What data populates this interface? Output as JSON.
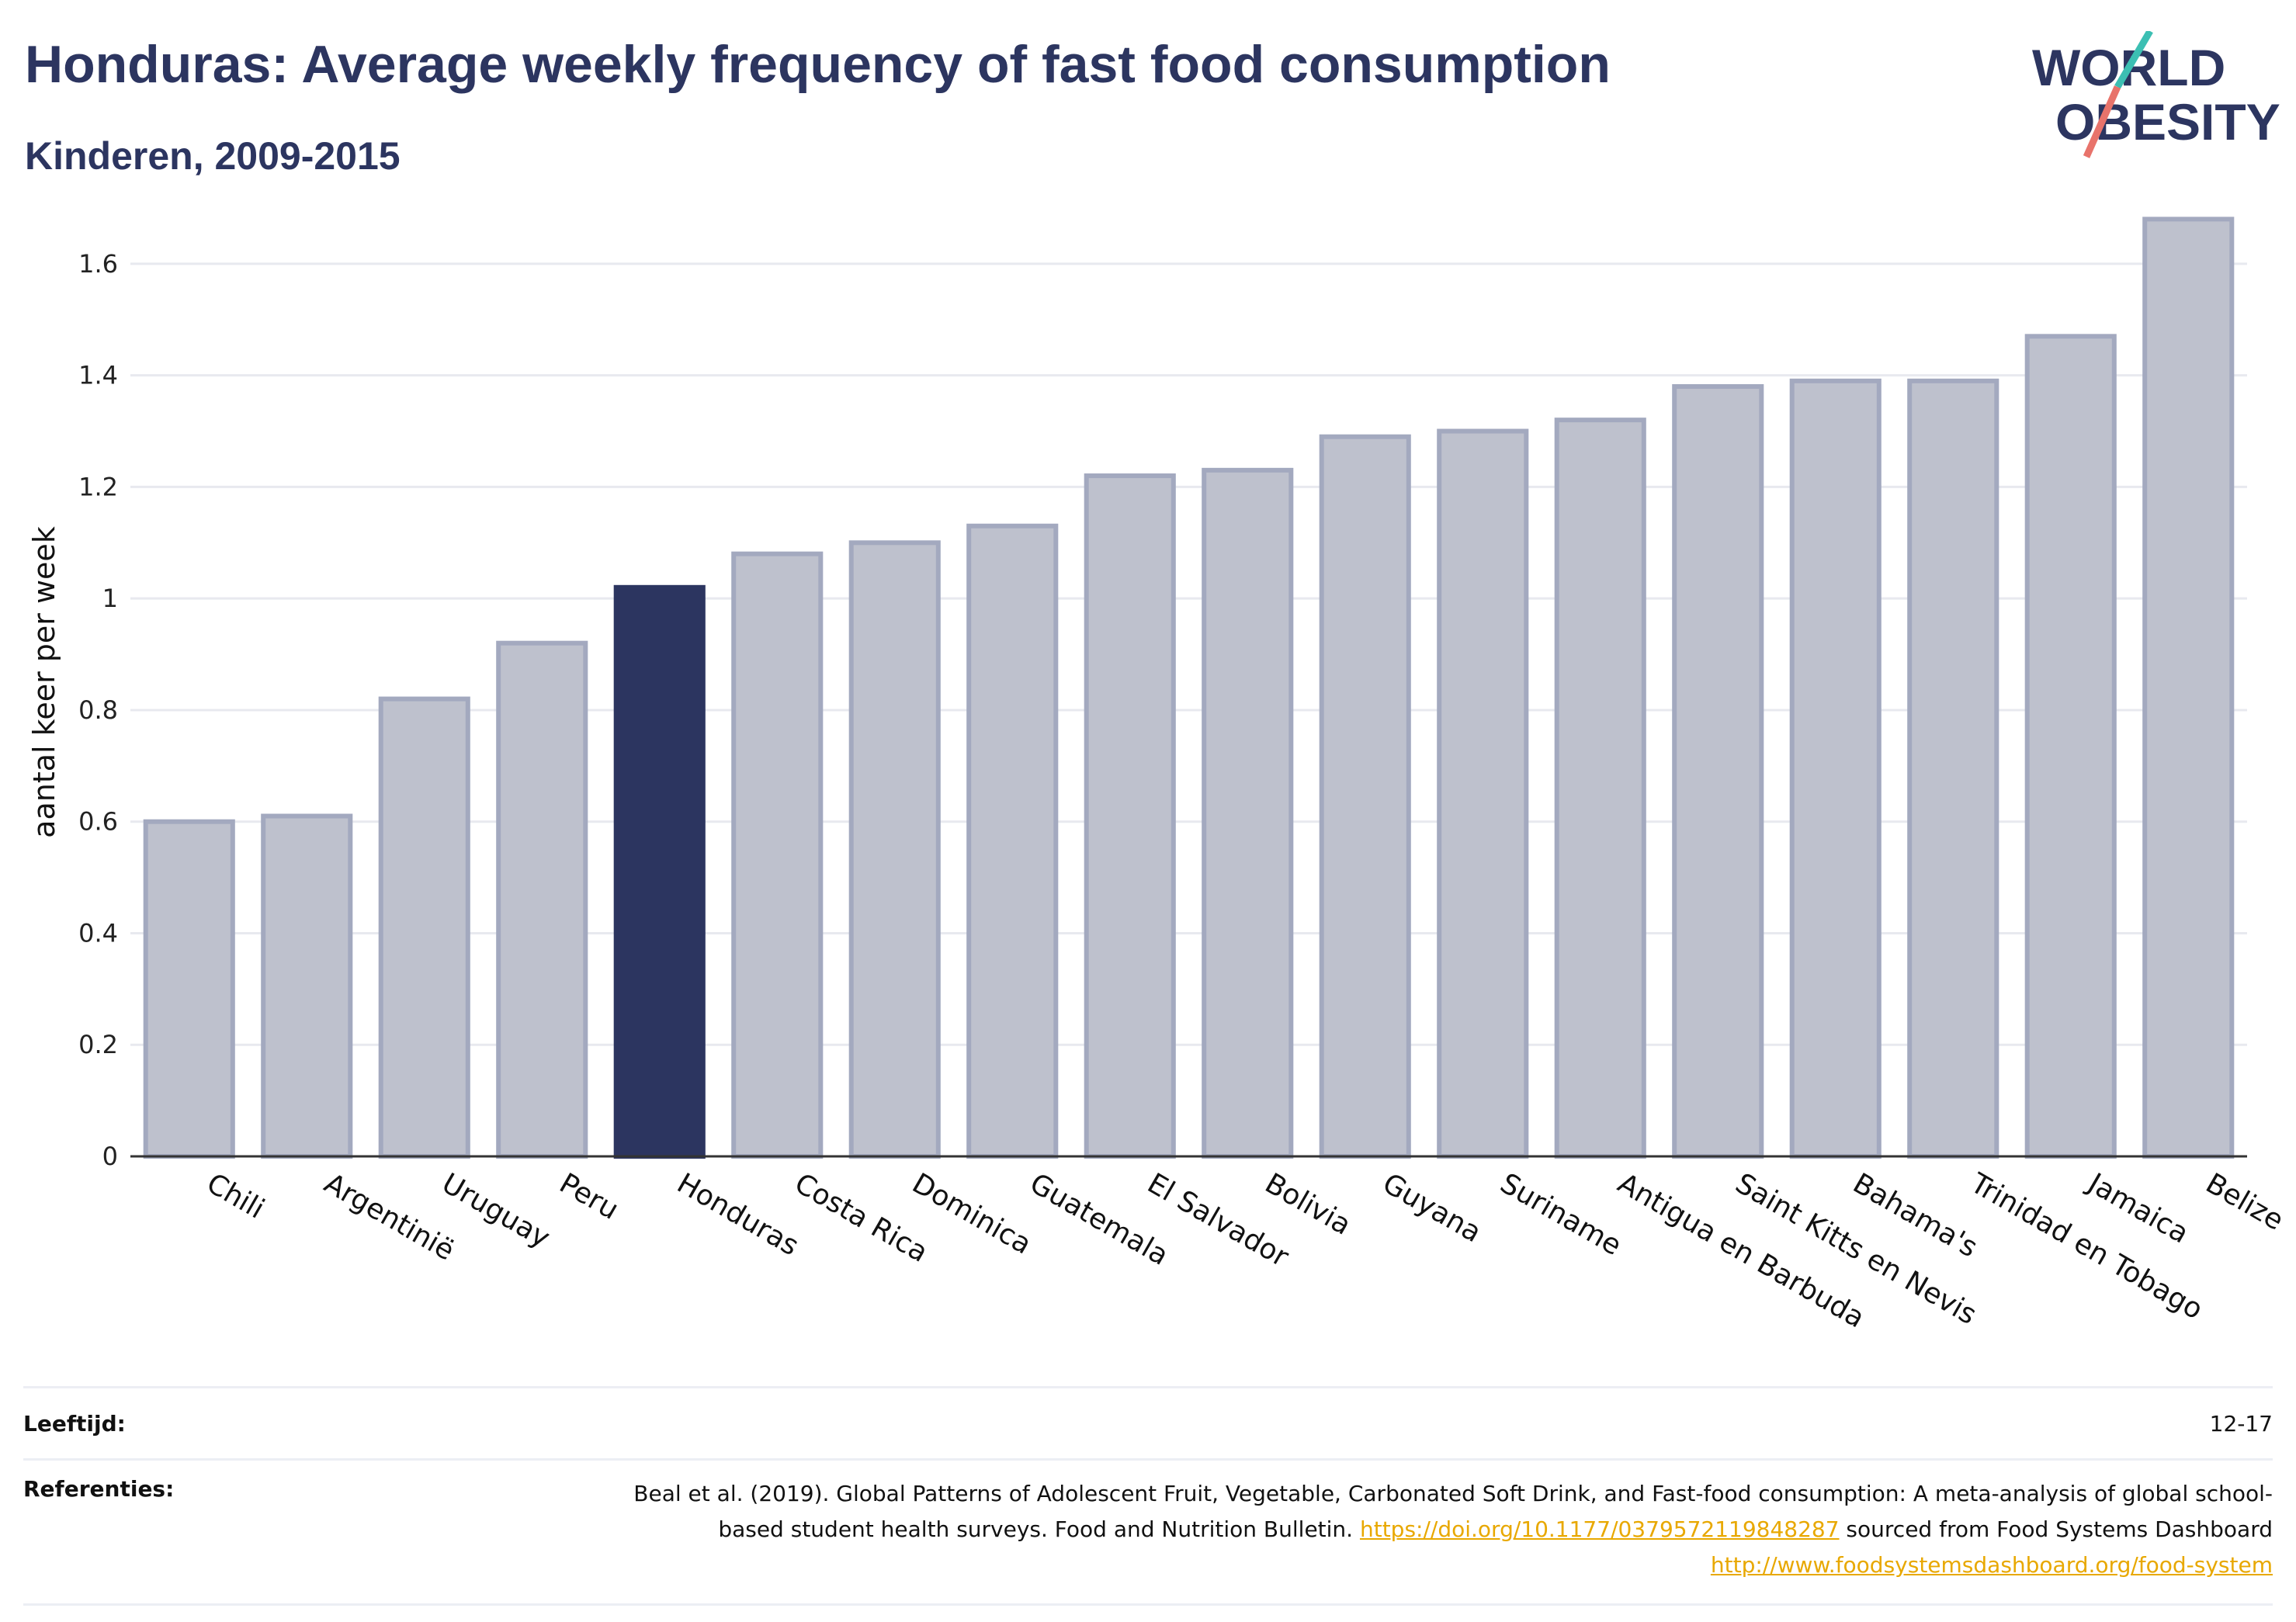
{
  "header": {
    "title": "Honduras: Average weekly frequency of fast food consumption",
    "subtitle": "Kinderen, 2009-2015"
  },
  "logo": {
    "line1": "WORLD",
    "line2": "OBESITY"
  },
  "chart_data": {
    "type": "bar",
    "ylabel": "aantal keer per week",
    "xlabel": "",
    "ylim": [
      0,
      1.7
    ],
    "yticks": [
      0,
      0.2,
      0.4,
      0.6,
      0.8,
      1,
      1.2,
      1.4,
      1.6
    ],
    "ytick_labels": [
      "0",
      "0.2",
      "0.4",
      "0.6",
      "0.8",
      "1",
      "1.2",
      "1.4",
      "1.6"
    ],
    "grid": true,
    "highlight": "Honduras",
    "categories": [
      "Chili",
      "Argentinië",
      "Uruguay",
      "Peru",
      "Honduras",
      "Costa Rica",
      "Dominica",
      "Guatemala",
      "El Salvador",
      "Bolivia",
      "Guyana",
      "Suriname",
      "Antigua en Barbuda",
      "Saint Kitts en Nevis",
      "Bahama's",
      "Trinidad en Tobago",
      "Jamaica",
      "Belize"
    ],
    "values": [
      0.6,
      0.61,
      0.82,
      0.92,
      1.02,
      1.08,
      1.1,
      1.13,
      1.22,
      1.23,
      1.29,
      1.3,
      1.32,
      1.38,
      1.39,
      1.39,
      1.47,
      1.68
    ],
    "colors": {
      "bar": "#bec1cd",
      "bar_border": "#a3a9bf",
      "highlight": "#2c3560",
      "grid": "#e8e9ef",
      "axis": "#333333"
    }
  },
  "footer": {
    "age_label": "Leeftijd:",
    "age_value": "12-17",
    "refs_label": "Referenties:",
    "ref_text_1": "Beal et al. (2019). Global Patterns of Adolescent Fruit, Vegetable, Carbonated Soft Drink, and Fast-food consumption: A meta-analysis of global school-based student health surveys. Food and Nutrition Bulletin. ",
    "ref_link_1": "https://doi.org/10.1177/0379572119848287",
    "ref_text_2": " sourced from Food Systems Dashboard ",
    "ref_link_2": "http://www.foodsystemsdashboard.org/food-system"
  }
}
